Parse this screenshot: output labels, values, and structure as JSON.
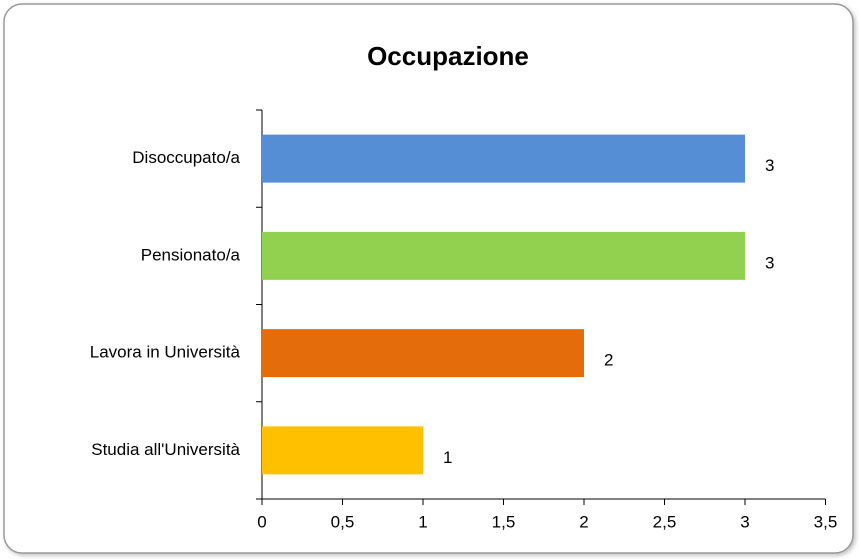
{
  "chart_data": {
    "type": "bar",
    "orientation": "horizontal",
    "title": "Occupazione",
    "categories": [
      "Disoccupato/a",
      "Pensionato/a",
      "Lavora in Università",
      "Studia all'Università"
    ],
    "values": [
      3,
      3,
      2,
      1
    ],
    "colors": [
      "#558ed5",
      "#92d050",
      "#e46c0a",
      "#ffc000"
    ],
    "xlim": [
      0,
      3.5
    ],
    "xticks": [
      0,
      {
        "value": 0.5,
        "label": "0,5"
      },
      1,
      {
        "value": 1.5,
        "label": "1,5"
      },
      2,
      {
        "value": 2.5,
        "label": "2,5"
      },
      3,
      {
        "value": 3.5,
        "label": "3,5"
      }
    ],
    "grid": false
  }
}
